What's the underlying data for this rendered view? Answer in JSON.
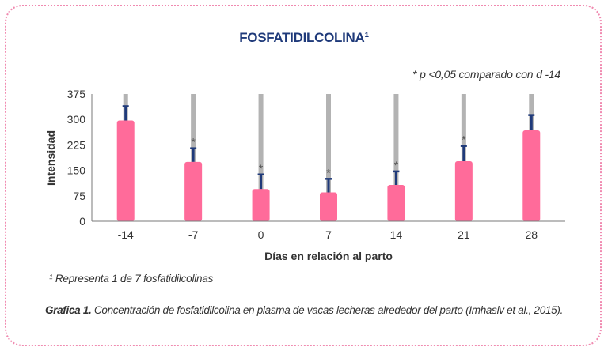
{
  "chart_data": {
    "type": "bar",
    "title": "FOSFATIDILCOLINA¹",
    "note": "* p <0,05 comparado con d -14",
    "xlabel": "Días en relación al parto",
    "ylabel": "Intensidad",
    "ylim": [
      0,
      375
    ],
    "yticks": [
      "0",
      "75",
      "150",
      "225",
      "300",
      "375"
    ],
    "categories": [
      "-14",
      "-7",
      "0",
      "7",
      "14",
      "21",
      "28"
    ],
    "values": [
      297,
      175,
      95,
      85,
      107,
      177,
      268
    ],
    "errors": [
      42,
      40,
      43,
      40,
      40,
      45,
      45
    ],
    "significant": [
      false,
      true,
      true,
      true,
      true,
      true,
      false
    ],
    "bar_color": "#ff6b9a",
    "error_color": "#1f3a7a",
    "background_bar_color": "#b3b3b3"
  },
  "footnote": "¹ Representa 1 de 7 fosfatidilcolinas",
  "caption": {
    "label": "Grafica 1.",
    "text": " Concentración de fosfatidilcolina en plasma de vacas lecheras alrededor del parto (Imhaslv et al., 2015)."
  }
}
